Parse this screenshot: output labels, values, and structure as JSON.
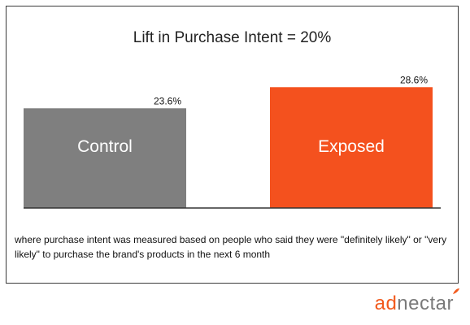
{
  "chart_data": {
    "type": "bar",
    "title": "Lift in Purchase Intent = 20%",
    "categories": [
      "Control",
      "Exposed"
    ],
    "values": [
      23.6,
      28.6
    ],
    "value_labels": [
      "23.6%",
      "28.6%"
    ],
    "colors": [
      "#7f7f7f",
      "#f4511e"
    ],
    "ylim": [
      0,
      30
    ],
    "grid": false,
    "legend": "none"
  },
  "footnote": "where purchase intent was measured based on people who said they were \"definitely likely\" or \"very likely\" to purchase the brand's products in the next 6 month",
  "logo": {
    "part1": "ad",
    "part2": "nectar"
  }
}
